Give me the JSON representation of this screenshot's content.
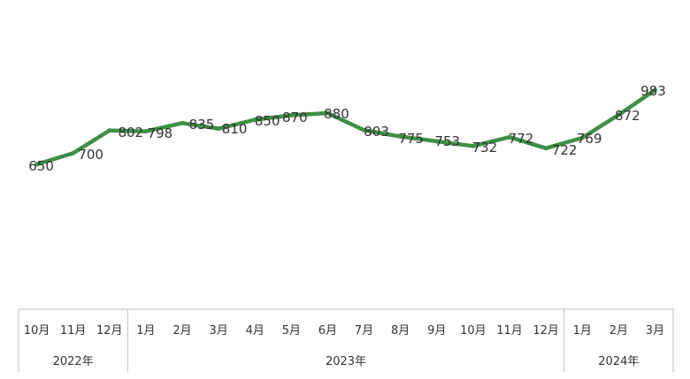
{
  "chart_data": {
    "type": "line",
    "title": "",
    "xlabel": "",
    "ylabel": "",
    "grid": false,
    "legend": "none",
    "series": [
      {
        "name": "",
        "color": "#3f8f46",
        "values": [
          650,
          700,
          802,
          798,
          835,
          810,
          850,
          870,
          880,
          803,
          775,
          753,
          732,
          772,
          722,
          769,
          872,
          983
        ]
      }
    ],
    "categories": [
      "10月",
      "11月",
      "12月",
      "1月",
      "2月",
      "3月",
      "4月",
      "5月",
      "6月",
      "7月",
      "8月",
      "9月",
      "10月",
      "11月",
      "12月",
      "1月",
      "2月",
      "3月"
    ],
    "year_groups": [
      {
        "label": "2022年",
        "count": 3
      },
      {
        "label": "2023年",
        "count": 12
      },
      {
        "label": "2024年",
        "count": 3
      }
    ]
  }
}
